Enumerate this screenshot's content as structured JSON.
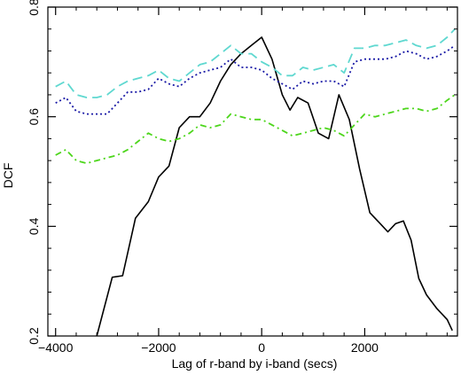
{
  "chart_data": {
    "type": "line",
    "xlabel": "Lag of r-band by i-band (secs)",
    "ylabel": "DCF",
    "xlim": [
      -4150,
      3800
    ],
    "ylim": [
      0.2,
      0.8
    ],
    "xticks": [
      -4000,
      -2000,
      0,
      2000
    ],
    "xtick_labels": [
      "−4000",
      "−2000",
      "0",
      "2000"
    ],
    "yticks": [
      0.2,
      0.4,
      0.6,
      0.8
    ],
    "ytick_labels": [
      "0.2",
      "0.4",
      "0.6",
      "0.8"
    ],
    "grid": false,
    "legend": "none",
    "series": [
      {
        "style": "solid",
        "color": "#000000",
        "x": [
          -3200,
          -2900,
          -2700,
          -2450,
          -2200,
          -2000,
          -1800,
          -1600,
          -1400,
          -1200,
          -1000,
          -800,
          -600,
          -400,
          -200,
          0,
          200,
          400,
          550,
          700,
          900,
          1100,
          1300,
          1500,
          1700,
          1900,
          2100,
          2300,
          2450,
          2600,
          2750,
          2900,
          3050,
          3200,
          3400,
          3600,
          3700
        ],
        "y": [
          0.2,
          0.307,
          0.31,
          0.415,
          0.445,
          0.49,
          0.51,
          0.58,
          0.6,
          0.6,
          0.625,
          0.665,
          0.695,
          0.715,
          0.73,
          0.745,
          0.705,
          0.64,
          0.612,
          0.635,
          0.625,
          0.57,
          0.56,
          0.64,
          0.595,
          0.505,
          0.425,
          0.405,
          0.39,
          0.405,
          0.41,
          0.375,
          0.305,
          0.275,
          0.25,
          0.23,
          0.21
        ]
      },
      {
        "style": "dashed",
        "color": "#5fd8d0",
        "x": [
          -4000,
          -3800,
          -3600,
          -3400,
          -3200,
          -3000,
          -2800,
          -2600,
          -2400,
          -2200,
          -2000,
          -1800,
          -1600,
          -1400,
          -1200,
          -1000,
          -800,
          -600,
          -400,
          -200,
          0,
          200,
          400,
          600,
          800,
          1000,
          1200,
          1400,
          1600,
          1800,
          2000,
          2200,
          2400,
          2600,
          2800,
          3000,
          3200,
          3400,
          3600,
          3750
        ],
        "y": [
          0.655,
          0.665,
          0.64,
          0.635,
          0.635,
          0.64,
          0.655,
          0.665,
          0.67,
          0.675,
          0.685,
          0.67,
          0.665,
          0.68,
          0.695,
          0.7,
          0.715,
          0.73,
          0.715,
          0.715,
          0.7,
          0.69,
          0.675,
          0.675,
          0.69,
          0.685,
          0.69,
          0.695,
          0.68,
          0.725,
          0.725,
          0.73,
          0.73,
          0.735,
          0.74,
          0.73,
          0.725,
          0.73,
          0.745,
          0.76
        ]
      },
      {
        "style": "dotted",
        "color": "#1a1aa6",
        "x": [
          -4000,
          -3800,
          -3600,
          -3400,
          -3200,
          -3000,
          -2800,
          -2600,
          -2400,
          -2200,
          -2000,
          -1800,
          -1600,
          -1400,
          -1200,
          -1000,
          -800,
          -600,
          -400,
          -200,
          0,
          200,
          400,
          600,
          800,
          1000,
          1200,
          1400,
          1600,
          1800,
          2000,
          2200,
          2400,
          2600,
          2800,
          3000,
          3200,
          3400,
          3600,
          3750
        ],
        "y": [
          0.625,
          0.635,
          0.61,
          0.605,
          0.605,
          0.605,
          0.625,
          0.645,
          0.645,
          0.65,
          0.67,
          0.66,
          0.655,
          0.67,
          0.68,
          0.685,
          0.69,
          0.705,
          0.69,
          0.69,
          0.685,
          0.67,
          0.66,
          0.65,
          0.665,
          0.66,
          0.665,
          0.665,
          0.655,
          0.7,
          0.705,
          0.705,
          0.705,
          0.71,
          0.72,
          0.715,
          0.705,
          0.71,
          0.72,
          0.73
        ]
      },
      {
        "style": "dashdot",
        "color": "#4dd61c",
        "x": [
          -4000,
          -3800,
          -3600,
          -3400,
          -3200,
          -3000,
          -2800,
          -2600,
          -2400,
          -2200,
          -2000,
          -1800,
          -1600,
          -1400,
          -1200,
          -1000,
          -800,
          -600,
          -400,
          -200,
          0,
          200,
          400,
          600,
          800,
          1000,
          1200,
          1400,
          1600,
          1800,
          2000,
          2200,
          2400,
          2600,
          2800,
          3000,
          3200,
          3400,
          3600,
          3750
        ],
        "y": [
          0.53,
          0.54,
          0.52,
          0.515,
          0.52,
          0.525,
          0.53,
          0.54,
          0.555,
          0.57,
          0.56,
          0.555,
          0.56,
          0.57,
          0.585,
          0.58,
          0.585,
          0.605,
          0.6,
          0.595,
          0.595,
          0.585,
          0.575,
          0.565,
          0.57,
          0.575,
          0.58,
          0.575,
          0.565,
          0.585,
          0.605,
          0.6,
          0.605,
          0.61,
          0.615,
          0.615,
          0.61,
          0.615,
          0.63,
          0.64
        ]
      }
    ]
  }
}
